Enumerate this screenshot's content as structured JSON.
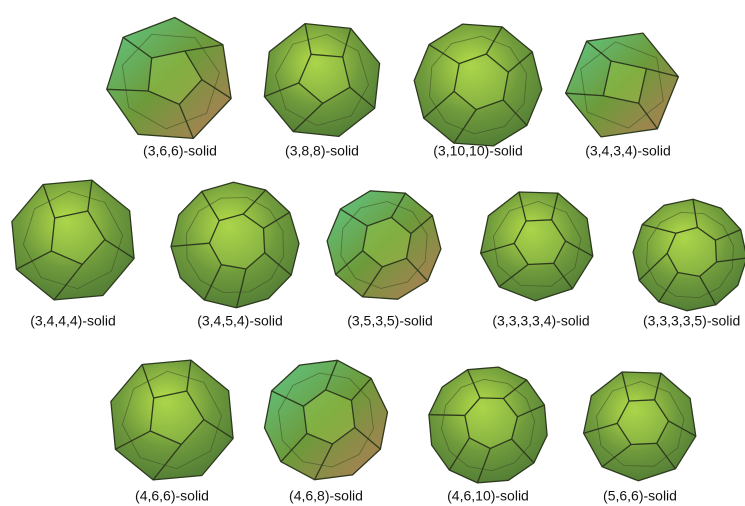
{
  "rows": [
    [
      "(3,6,6)-solid",
      "(3,8,8)-solid",
      "(3,10,10)-solid",
      "(3,4,3,4)-solid"
    ],
    [
      "(3,4,4,4)-solid",
      "(3,4,5,4)-solid",
      "(3,5,3,5)-solid",
      "(3,3,3,3,4)-solid",
      "(3,3,3,3,5)-solid"
    ],
    [
      "(4,6,6)-solid",
      "(4,6,8)-solid",
      "(4,6,10)-solid",
      "(5,6,6)-solid"
    ]
  ]
}
